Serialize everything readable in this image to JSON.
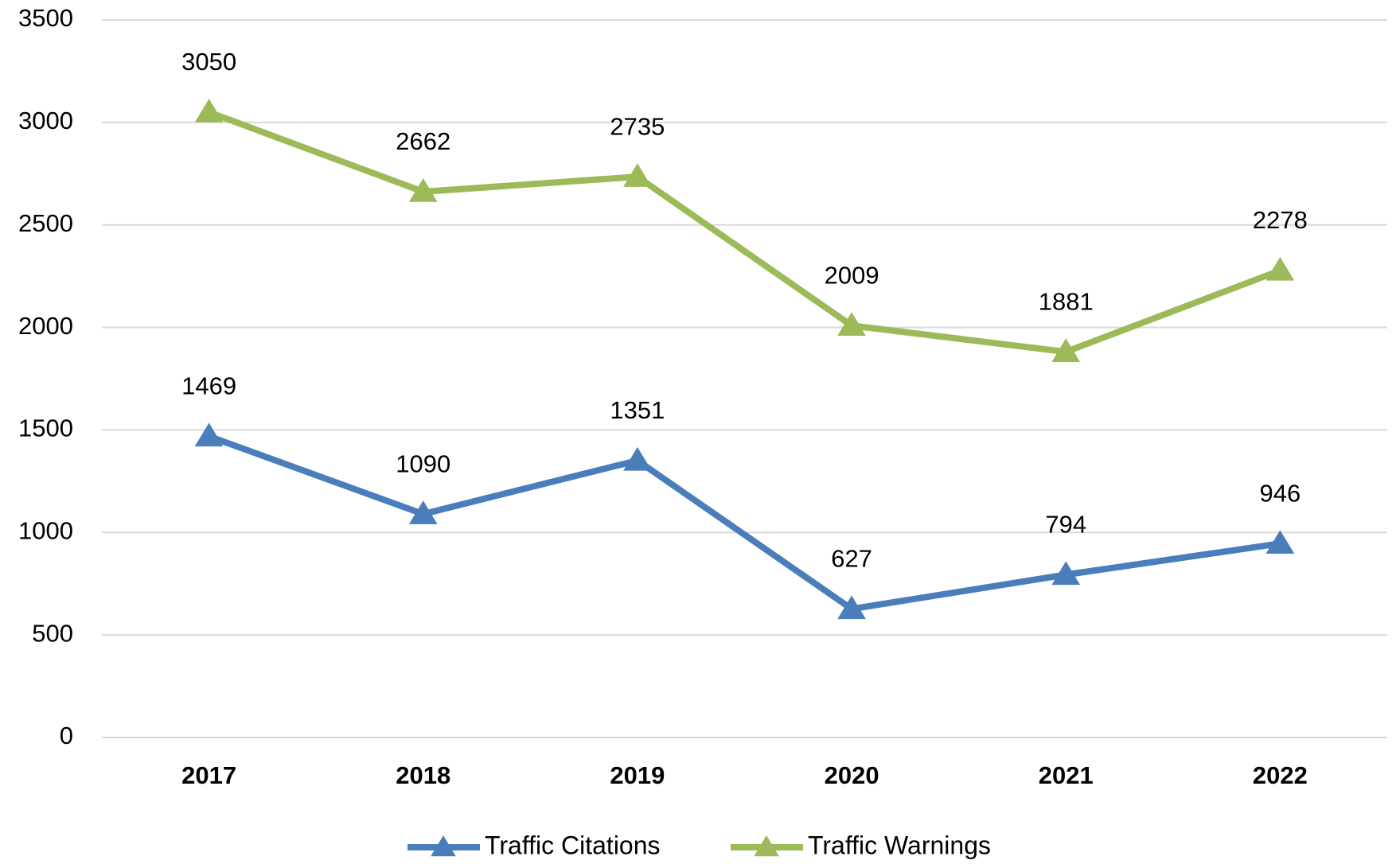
{
  "chart_data": {
    "type": "line",
    "categories": [
      "2017",
      "2018",
      "2019",
      "2020",
      "2021",
      "2022"
    ],
    "series": [
      {
        "name": "Traffic Citations",
        "color": "#4a7ebb",
        "values": [
          1469,
          1090,
          1351,
          627,
          794,
          946
        ]
      },
      {
        "name": "Traffic Warnings",
        "color": "#9bbb59",
        "values": [
          3050,
          2662,
          2735,
          2009,
          1881,
          2278
        ]
      }
    ],
    "ylim": [
      0,
      3500
    ],
    "yticks": [
      0,
      500,
      1000,
      1500,
      2000,
      2500,
      3000,
      3500
    ],
    "grid": true,
    "legend": "bottom",
    "marker": "triangle"
  }
}
